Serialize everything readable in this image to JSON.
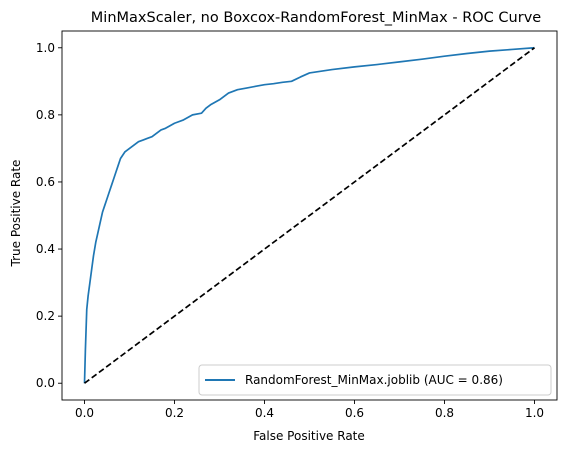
{
  "chart_data": {
    "type": "line",
    "title": "MinMaxScaler, no Boxcox-RandomForest_MinMax - ROC Curve",
    "xlabel": "False Positive Rate",
    "ylabel": "True Positive Rate",
    "xlim": [
      -0.05,
      1.05
    ],
    "ylim": [
      -0.05,
      1.05
    ],
    "xticks": [
      0.0,
      0.2,
      0.4,
      0.6,
      0.8,
      1.0
    ],
    "yticks": [
      0.0,
      0.2,
      0.4,
      0.6,
      0.8,
      1.0
    ],
    "xtick_labels": [
      "0.0",
      "0.2",
      "0.4",
      "0.6",
      "0.8",
      "1.0"
    ],
    "ytick_labels": [
      "0.0",
      "0.2",
      "0.4",
      "0.6",
      "0.8",
      "1.0"
    ],
    "legend_position": "lower-right",
    "grid": false,
    "series": [
      {
        "name": "RandomForest_MinMax.joblib (AUC = 0.86)",
        "color": "#1f77b4",
        "style": "solid",
        "x": [
          0.0,
          0.002,
          0.005,
          0.008,
          0.012,
          0.016,
          0.02,
          0.025,
          0.03,
          0.035,
          0.04,
          0.045,
          0.05,
          0.055,
          0.06,
          0.065,
          0.07,
          0.075,
          0.08,
          0.085,
          0.09,
          0.1,
          0.11,
          0.12,
          0.13,
          0.14,
          0.15,
          0.16,
          0.17,
          0.18,
          0.2,
          0.22,
          0.24,
          0.26,
          0.27,
          0.28,
          0.3,
          0.32,
          0.34,
          0.36,
          0.38,
          0.4,
          0.42,
          0.44,
          0.46,
          0.48,
          0.5,
          0.55,
          0.6,
          0.65,
          0.7,
          0.75,
          0.8,
          0.85,
          0.9,
          0.95,
          1.0
        ],
        "y": [
          0.0,
          0.1,
          0.22,
          0.26,
          0.3,
          0.34,
          0.38,
          0.42,
          0.45,
          0.48,
          0.51,
          0.53,
          0.55,
          0.57,
          0.59,
          0.61,
          0.63,
          0.65,
          0.67,
          0.68,
          0.69,
          0.7,
          0.71,
          0.72,
          0.725,
          0.73,
          0.735,
          0.745,
          0.755,
          0.76,
          0.775,
          0.785,
          0.8,
          0.805,
          0.82,
          0.83,
          0.845,
          0.865,
          0.875,
          0.88,
          0.885,
          0.89,
          0.893,
          0.897,
          0.9,
          0.913,
          0.925,
          0.935,
          0.943,
          0.95,
          0.958,
          0.966,
          0.975,
          0.983,
          0.99,
          0.995,
          1.0
        ]
      },
      {
        "name": "",
        "color": "#000000",
        "style": "dashed",
        "x": [
          0.0,
          1.0
        ],
        "y": [
          0.0,
          1.0
        ]
      }
    ]
  }
}
